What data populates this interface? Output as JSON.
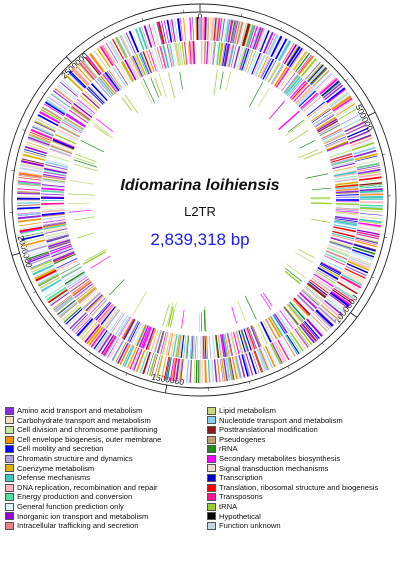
{
  "genome": {
    "organism": "Idiomarina loihiensis",
    "strain": "L2TR",
    "size_label": "2,839,318 bp",
    "size_bp": 2839318
  },
  "ticks": [
    {
      "label": "0",
      "value": 0
    },
    {
      "label": "500000",
      "value": 500000
    },
    {
      "label": "1000000",
      "value": 1000000
    },
    {
      "label": "1500000",
      "value": 1500000
    },
    {
      "label": "2000000",
      "value": 2000000
    },
    {
      "label": "2500000",
      "value": 2500000
    }
  ],
  "colors": {
    "title": "#111111",
    "size": "#1a1aff",
    "ring": "#222222"
  },
  "legend": {
    "left": [
      {
        "label": "Amino acid transport and metabolism",
        "color": "#8a2be2"
      },
      {
        "label": "Carbohydrate transport and metabolism",
        "color": "#f0e0c0"
      },
      {
        "label": "Cell division and chromosome partitioning",
        "color": "#c8e6a0"
      },
      {
        "label": "Cell envelope biogenesis, outer membrane",
        "color": "#ff8c00"
      },
      {
        "label": "Cell motility and secretion",
        "color": "#0000ff"
      },
      {
        "label": "Chromatin structure and dynamics",
        "color": "#b0a0e0"
      },
      {
        "label": "Coenzyme metabolism",
        "color": "#e0b000"
      },
      {
        "label": "Defense mechanisms",
        "color": "#40c8c0"
      },
      {
        "label": "DNA replication, recombination and repair",
        "color": "#ffb6c1"
      },
      {
        "label": "Energy production and conversion",
        "color": "#50e0a0"
      },
      {
        "label": "General function prediction only",
        "color": "#e0f4ff"
      },
      {
        "label": "Inorganic ion transport and metabolism",
        "color": "#9400d3"
      },
      {
        "label": "Intracellular trafficking and secretion",
        "color": "#f08080"
      }
    ],
    "right": [
      {
        "label": "Lipid metabolism",
        "color": "#c8d878"
      },
      {
        "label": "Nucleotide transport and metabolism",
        "color": "#87cefa"
      },
      {
        "label": "Posttranslational modification",
        "color": "#8b1a1a"
      },
      {
        "label": "Pseudogenes",
        "color": "#c0a070"
      },
      {
        "label": "rRNA",
        "color": "#228b22"
      },
      {
        "label": "Secondary metabolites biosynthesis",
        "color": "#ff00ff"
      },
      {
        "label": "Signal transduction mechanisms",
        "color": "#e8d8d0"
      },
      {
        "label": "Transcription",
        "color": "#0000cc"
      },
      {
        "label": "Translation, ribosomal structure and biogenesis",
        "color": "#ff0000"
      },
      {
        "label": "Transposons",
        "color": "#ff1493"
      },
      {
        "label": "tRNA",
        "color": "#9acd32"
      },
      {
        "label": "Hypothetical",
        "color": "#000000"
      },
      {
        "label": "Function unknown",
        "color": "#c0d8e8"
      }
    ]
  }
}
